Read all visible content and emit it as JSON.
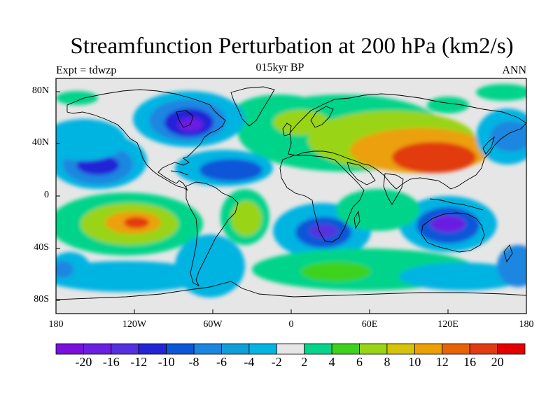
{
  "map": {
    "title": "Streamfunction Perturbation at 200 hPa (km2/s)",
    "subtitle": "015kyr BP",
    "left_label": "Expt = tdwzp",
    "right_label": "ANN",
    "lat_ticks": [
      "80N",
      "40N",
      "0",
      "40S",
      "80S"
    ],
    "lon_ticks": [
      "180",
      "120W",
      "60W",
      "0",
      "60E",
      "120E",
      "180"
    ],
    "colorbar": {
      "tick_labels": [
        "-20",
        "-16",
        "-12",
        "-10",
        "-8",
        "-6",
        "-4",
        "-2",
        "2",
        "4",
        "6",
        "8",
        "10",
        "12",
        "16",
        "20"
      ],
      "colors": [
        "#7a10de",
        "#6c1ee2",
        "#5430e0",
        "#2424d6",
        "#0b57d8",
        "#1a86e0",
        "#0e9fd8",
        "#06b4e2",
        "#e6e6e6",
        "#06d48a",
        "#3ed21c",
        "#9ad414",
        "#d6c40c",
        "#eca007",
        "#e66406",
        "#e23b11",
        "#e20000"
      ]
    }
  }
}
